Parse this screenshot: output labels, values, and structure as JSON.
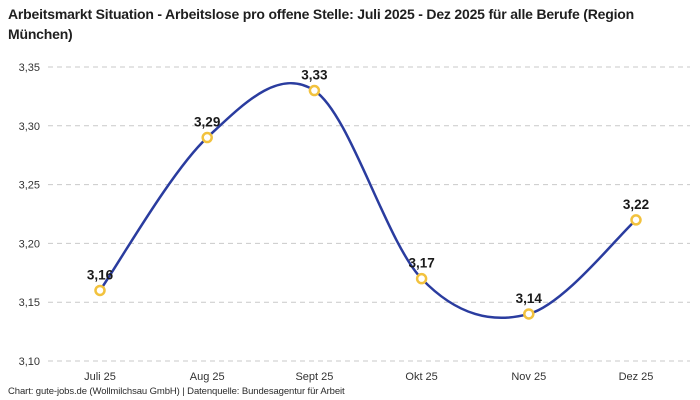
{
  "header": {
    "title": "Arbeitsmarkt Situation - Arbeitslose pro offene Stelle: Juli 2025 - Dez 2025 für alle Berufe (Region München)"
  },
  "chart_data": {
    "type": "line",
    "title": "Arbeitsmarkt Situation - Arbeitslose pro offene Stelle: Juli 2025 - Dez 2025 für alle Berufe (Region München)",
    "categories": [
      "Juli 25",
      "Aug 25",
      "Sept 25",
      "Okt 25",
      "Nov 25",
      "Dez 25"
    ],
    "values": [
      3.16,
      3.29,
      3.33,
      3.17,
      3.14,
      3.22
    ],
    "point_labels": [
      "3,16",
      "3,29",
      "3,33",
      "3,17",
      "3,14",
      "3,22"
    ],
    "y_ticks": [
      3.1,
      3.15,
      3.2,
      3.25,
      3.3,
      3.35
    ],
    "y_tick_labels": [
      "3,10",
      "3,15",
      "3,20",
      "3,25",
      "3,30",
      "3,35"
    ],
    "ylim": [
      3.1,
      3.35
    ],
    "xlabel": "",
    "ylabel": "",
    "grid": "horizontal-dashed",
    "legend": "none",
    "curve": "smooth",
    "colors": {
      "line": "#2a3c9f",
      "marker_stroke": "#f2c23e",
      "marker_fill": "#ffffff",
      "grid": "#c9c9c9",
      "axis_text": "#333333",
      "label_text": "#1a1a1a"
    }
  },
  "footer": {
    "attribution": "Chart: gute-jobs.de (Wollmilchsau GmbH) | Datenquelle: Bundesagentur für Arbeit"
  }
}
